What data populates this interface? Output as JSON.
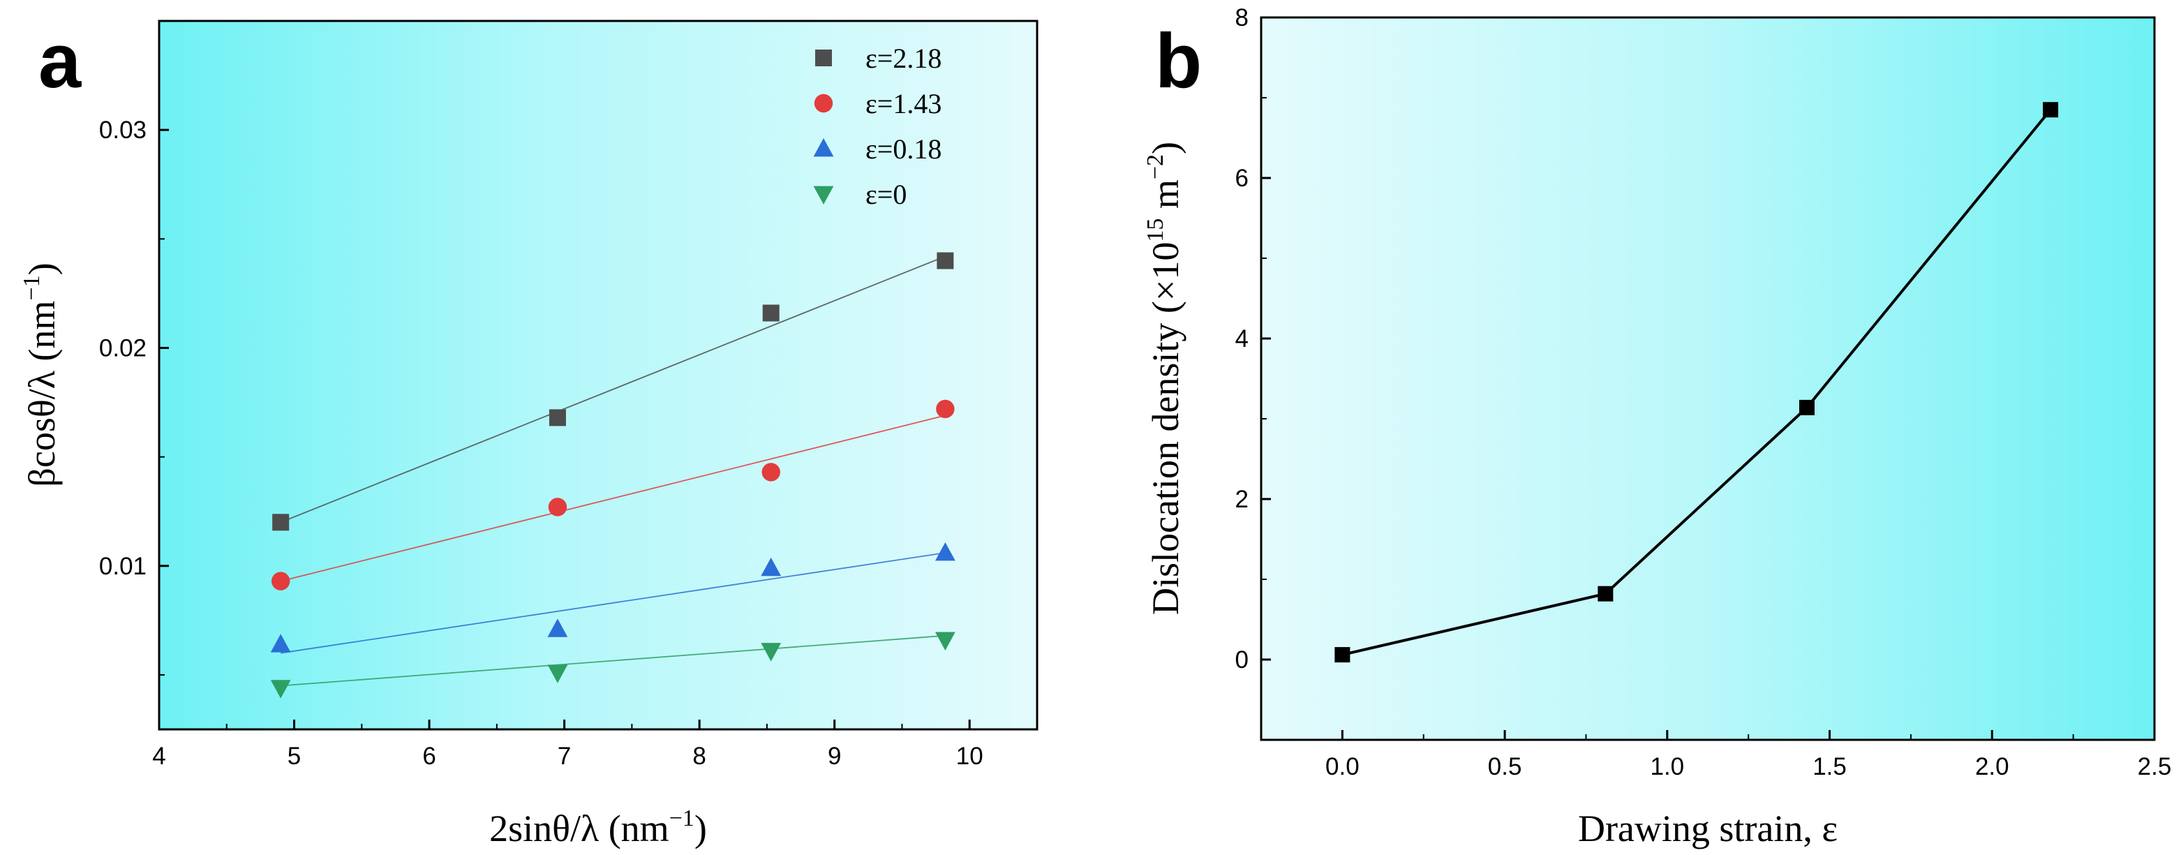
{
  "chart_data": [
    {
      "panel": "a",
      "type": "scatter",
      "fit": "linear",
      "xlabel_main": "2sinθ/λ (nm",
      "xlabel_sup": "−1",
      "xlabel_end": ")",
      "ylabel_main": "βcosθ/λ (nm",
      "ylabel_sup": "−1",
      "ylabel_end": ")",
      "xlim": [
        4,
        10.5
      ],
      "ylim": [
        0.0025,
        0.035
      ],
      "xticks": [
        4,
        5,
        6,
        7,
        8,
        9,
        10
      ],
      "yticks": [
        0.01,
        0.02,
        0.03
      ],
      "ytick_labels": [
        "0.01",
        "0.02",
        "0.03"
      ],
      "legend_position": "top-right",
      "series": [
        {
          "name": "ε=2.18",
          "marker": "square",
          "color": "#4d4d4d",
          "x": [
            4.9,
            6.95,
            8.53,
            9.82
          ],
          "y": [
            0.012,
            0.0168,
            0.0216,
            0.024
          ],
          "fit_x": [
            4.9,
            9.82
          ],
          "fit_y": [
            0.012,
            0.0242
          ]
        },
        {
          "name": "ε=1.43",
          "marker": "circle",
          "color": "#e23c3c",
          "x": [
            4.9,
            6.95,
            8.53,
            9.82
          ],
          "y": [
            0.0093,
            0.0127,
            0.0143,
            0.0172
          ],
          "fit_x": [
            4.9,
            9.82
          ],
          "fit_y": [
            0.0093,
            0.0169
          ]
        },
        {
          "name": "ε=0.18",
          "marker": "triangle-up",
          "color": "#2a6fd6",
          "x": [
            4.9,
            6.95,
            8.53,
            9.82
          ],
          "y": [
            0.0064,
            0.0071,
            0.0099,
            0.0106
          ],
          "fit_x": [
            4.9,
            9.82
          ],
          "fit_y": [
            0.006,
            0.0106
          ]
        },
        {
          "name": "ε=0",
          "marker": "triangle-down",
          "color": "#2e9e63",
          "x": [
            4.9,
            6.95,
            8.53,
            9.82
          ],
          "y": [
            0.0044,
            0.0051,
            0.0061,
            0.0066
          ],
          "fit_x": [
            4.9,
            9.82
          ],
          "fit_y": [
            0.0045,
            0.0068
          ]
        }
      ]
    },
    {
      "panel": "b",
      "type": "line",
      "xlabel": "Drawing strain, ε",
      "ylabel_main": "Dislocation density (×10",
      "ylabel_sup1": "15",
      "ylabel_mid": " m",
      "ylabel_sup2": "−2",
      "ylabel_end": ")",
      "xlim": [
        -0.25,
        2.5
      ],
      "ylim": [
        -1,
        8
      ],
      "xticks": [
        0,
        0.5,
        1.0,
        1.5,
        2.0,
        2.5
      ],
      "xtick_labels": [
        "0.0",
        "0.5",
        "1.0",
        "1.5",
        "2.0",
        "2.5"
      ],
      "yticks": [
        0,
        2,
        4,
        6,
        8
      ],
      "ytick_labels": [
        "0",
        "2",
        "4",
        "6",
        "8"
      ],
      "series": [
        {
          "name": "dislocation density",
          "marker": "square",
          "color": "#000000",
          "x": [
            0,
            0.81,
            1.43,
            2.18
          ],
          "y": [
            0.06,
            0.82,
            3.14,
            6.85
          ]
        }
      ]
    }
  ],
  "gradient": {
    "cyan": "#6ff1f4",
    "light": "#e4fbfc"
  }
}
